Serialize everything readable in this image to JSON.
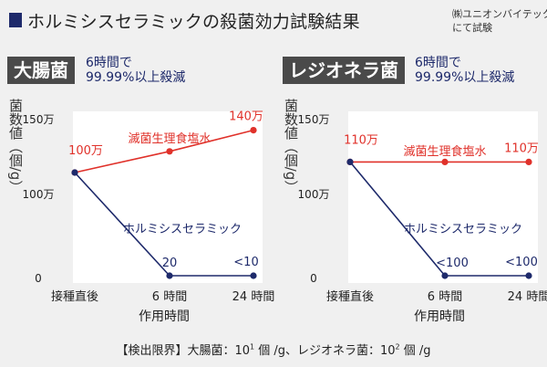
{
  "header": {
    "title": "ホルミシスセラミックの殺菌効力試験結果",
    "maker_line1": "㈱ユニオンバイテック",
    "maker_line2": "にて試験"
  },
  "panels": [
    {
      "badge": "大腸菌",
      "note_line1": "6時間で",
      "note_line2": "99.99%以上殺滅"
    },
    {
      "badge": "レジオネラ菌",
      "note_line1": "6時間で",
      "note_line2": "99.99%以上殺滅"
    }
  ],
  "footnote": {
    "prefix": "【検出限界】大腸菌：10",
    "sup1": "1",
    "middle": " 個 /g、レジオネラ菌：10",
    "sup2": "2",
    "suffix": " 個 /g"
  },
  "colors": {
    "red": "#e0312a",
    "navy": "#1e2a6b",
    "plot_bg": "#ffffff"
  },
  "chart_data": [
    {
      "type": "line",
      "ylabel": "菌数値（個/g）",
      "xlabel": "作用時間",
      "categories": [
        "接種直後",
        "6 時間",
        "24 時間"
      ],
      "yticks": [
        "150万",
        "100万",
        "0"
      ],
      "ylim": [
        0,
        1500000
      ],
      "series": [
        {
          "name": "滅菌生理食塩水",
          "color": "#e0312a",
          "values": [
            1000000,
            1200000,
            1400000
          ],
          "labels": [
            "100万",
            "",
            "140万"
          ]
        },
        {
          "name": "ホルミシスセラミック",
          "color": "#1e2a6b",
          "values": [
            1000000,
            20,
            10
          ],
          "labels": [
            "",
            "20",
            "<10"
          ]
        }
      ]
    },
    {
      "type": "line",
      "ylabel": "菌数値（個/g）",
      "xlabel": "作用時間",
      "categories": [
        "接種直後",
        "6 時間",
        "24 時間"
      ],
      "yticks": [
        "150万",
        "100万",
        "0"
      ],
      "ylim": [
        0,
        1500000
      ],
      "series": [
        {
          "name": "滅菌生理食塩水",
          "color": "#e0312a",
          "values": [
            1100000,
            1100000,
            1100000
          ],
          "labels": [
            "110万",
            "",
            "110万"
          ]
        },
        {
          "name": "ホルミシスセラミック",
          "color": "#1e2a6b",
          "values": [
            1100000,
            100,
            100
          ],
          "labels": [
            "",
            "<100",
            "<100"
          ]
        }
      ]
    }
  ]
}
